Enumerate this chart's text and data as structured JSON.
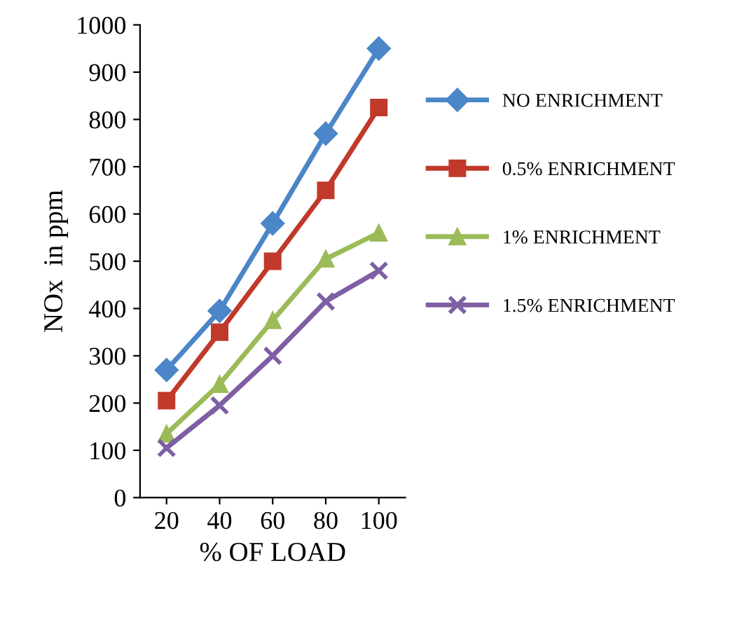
{
  "chart_data": {
    "type": "line",
    "xlabel": "% OF LOAD",
    "ylabel": "NOx  in ppm",
    "categories": [
      "20",
      "40",
      "60",
      "80",
      "100"
    ],
    "series": [
      {
        "name": "NO ENRICHMENT",
        "color": "#4a86c8",
        "marker": "diamond",
        "values": [
          270,
          395,
          580,
          770,
          950
        ]
      },
      {
        "name": "0.5% ENRICHMENT",
        "color": "#c0392b",
        "marker": "square",
        "values": [
          205,
          350,
          500,
          650,
          825
        ]
      },
      {
        "name": "1% ENRICHMENT",
        "color": "#9bbb59",
        "marker": "triangle",
        "values": [
          135,
          240,
          375,
          505,
          560
        ]
      },
      {
        "name": "1.5% ENRICHMENT",
        "color": "#7e5fa3",
        "marker": "cross",
        "values": [
          105,
          195,
          300,
          415,
          480
        ]
      }
    ],
    "ylim": [
      0,
      1000
    ],
    "yticks": [
      0,
      100,
      200,
      300,
      400,
      500,
      600,
      700,
      800,
      900,
      1000
    ],
    "grid": false,
    "legend": "right"
  }
}
